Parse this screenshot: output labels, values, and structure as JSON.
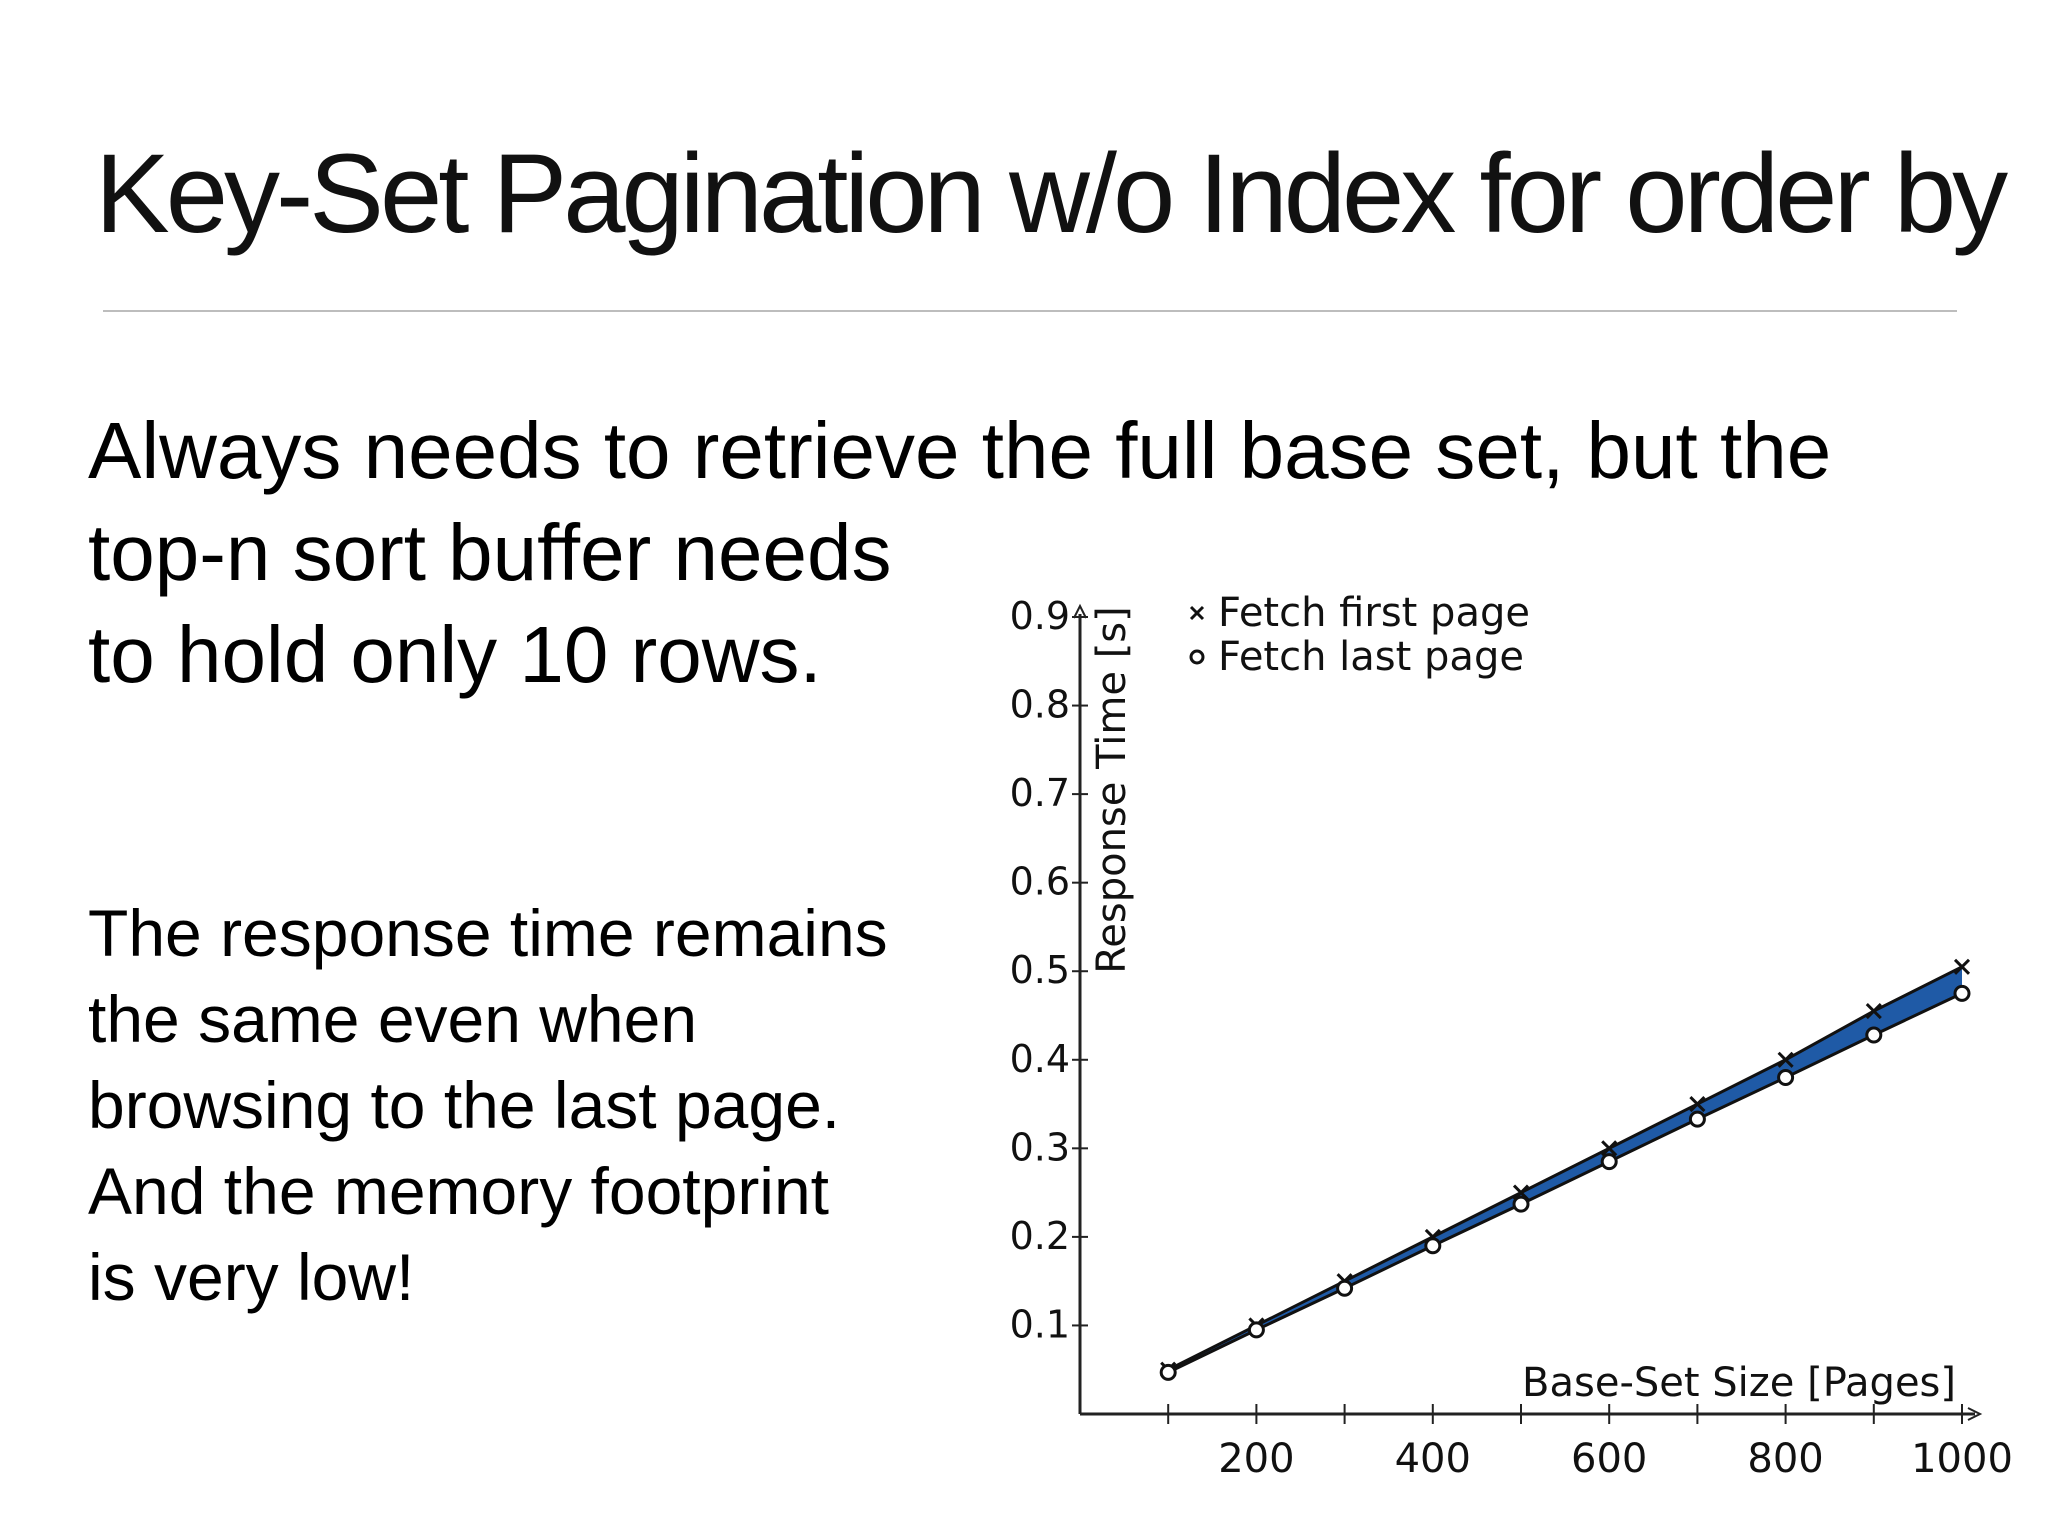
{
  "slide": {
    "title": "Key-Set Pagination w/o Index for order by",
    "lead_lines": [
      "Always needs to retrieve the full base set, but the",
      "top-n sort buffer needs",
      "to hold only 10 rows."
    ],
    "note_lines": [
      "The response time remains",
      "the same even when",
      "browsing to the last page.",
      "And the memory footprint",
      "is very low!"
    ]
  },
  "chart_data": {
    "type": "line",
    "xlabel": "Base-Set Size [Pages]",
    "ylabel": "Response Time [s]",
    "x": [
      100,
      200,
      300,
      400,
      500,
      600,
      700,
      800,
      900,
      1000
    ],
    "x_ticks": [
      200,
      400,
      600,
      800,
      1000
    ],
    "x_tick_labels": [
      "200",
      "400",
      "600",
      "800",
      "1000"
    ],
    "y_ticks": [
      0.1,
      0.2,
      0.3,
      0.4,
      0.5,
      0.6,
      0.7,
      0.8,
      0.9
    ],
    "y_tick_labels": [
      "0.1",
      "0.2",
      "0.3",
      "0.4",
      "0.5",
      "0.6",
      "0.7",
      "0.8",
      "0.9"
    ],
    "xlim": [
      0,
      1000
    ],
    "ylim": [
      0,
      0.9
    ],
    "grid": false,
    "legend_position": "top-left",
    "fill_between": true,
    "fill_color": "#1f5aa6",
    "series": [
      {
        "name": "Fetch first page",
        "marker": "x",
        "values": [
          0.05,
          0.1,
          0.15,
          0.2,
          0.25,
          0.3,
          0.35,
          0.4,
          0.455,
          0.505
        ]
      },
      {
        "name": "Fetch last page",
        "marker": "o",
        "values": [
          0.047,
          0.095,
          0.142,
          0.19,
          0.237,
          0.285,
          0.333,
          0.38,
          0.428,
          0.475
        ]
      }
    ]
  }
}
